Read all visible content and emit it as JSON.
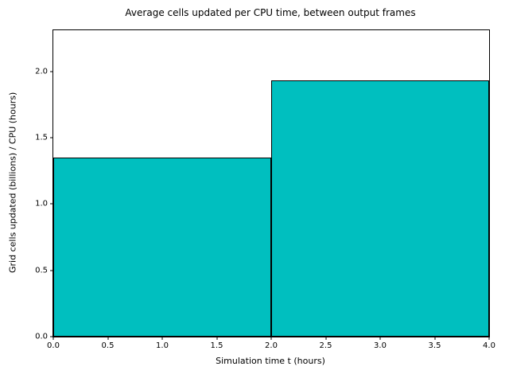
{
  "chart_data": {
    "type": "bar",
    "title": "Average cells updated per CPU time, between output frames",
    "xlabel": "Simulation time t (hours)",
    "ylabel": "Grid cells updated (billions) / CPU (hours)",
    "xlim": [
      0,
      4
    ],
    "ylim": [
      0,
      2.31
    ],
    "xticks": [
      0.0,
      0.5,
      1.0,
      1.5,
      2.0,
      2.5,
      3.0,
      3.5,
      4.0
    ],
    "yticks": [
      0.0,
      0.5,
      1.0,
      1.5,
      2.0
    ],
    "tick_label_decimals": 1,
    "bars": [
      {
        "x0": 0,
        "x1": 2,
        "value": 1.35
      },
      {
        "x0": 2,
        "x1": 4,
        "value": 1.93
      }
    ],
    "bar_fill_color": "#00bfbf",
    "bar_edge_color": "#000000",
    "axes_color": "#000000",
    "background_color": "#ffffff",
    "grid": false,
    "legend": null
  }
}
